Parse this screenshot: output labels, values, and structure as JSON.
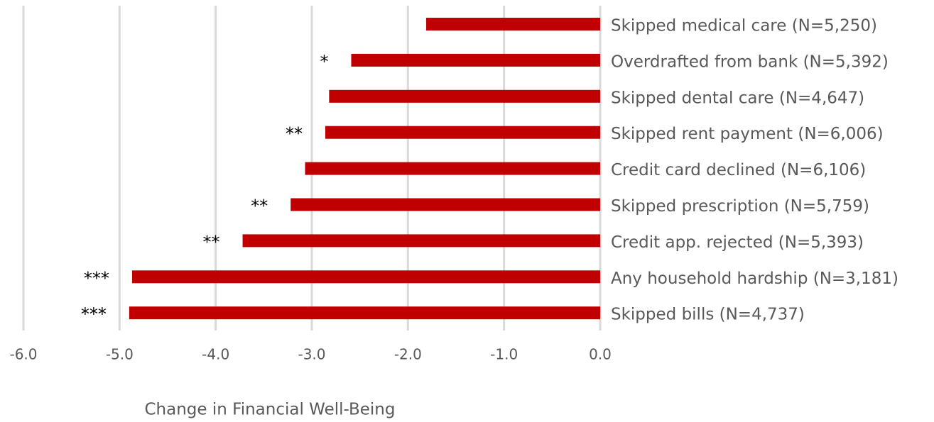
{
  "chart_data": {
    "type": "barh",
    "categories": [
      "Skipped medical care (N=5,250)",
      "Overdrafted from bank (N=5,392)",
      "Skipped dental care (N=4,647)",
      "Skipped rent payment (N=6,006)",
      "Credit card declined (N=6,106)",
      "Skipped prescription (N=5,759)",
      "Credit app. rejected (N=5,393)",
      "Any household hardship (N=3,181)",
      "Skipped bills (N=4,737)"
    ],
    "values": [
      -1.81,
      -2.59,
      -2.82,
      -2.86,
      -3.07,
      -3.22,
      -3.72,
      -4.87,
      -4.9
    ],
    "significance": [
      null,
      "*",
      null,
      "**",
      null,
      "**",
      "**",
      "***",
      "***"
    ],
    "color": "#c00000",
    "xlabel": "Change in Financial Well-Being",
    "xlim": [
      -6,
      0
    ],
    "xticks": [
      {
        "value": -6,
        "label": "-6.0"
      },
      {
        "value": -5,
        "label": "-5.0"
      },
      {
        "value": -4,
        "label": "-4.0"
      },
      {
        "value": -3,
        "label": "-3.0"
      },
      {
        "value": -2,
        "label": "-2.0"
      },
      {
        "value": -1,
        "label": "-1.0"
      },
      {
        "value": 0,
        "label": "0.0"
      }
    ],
    "grid": true
  }
}
